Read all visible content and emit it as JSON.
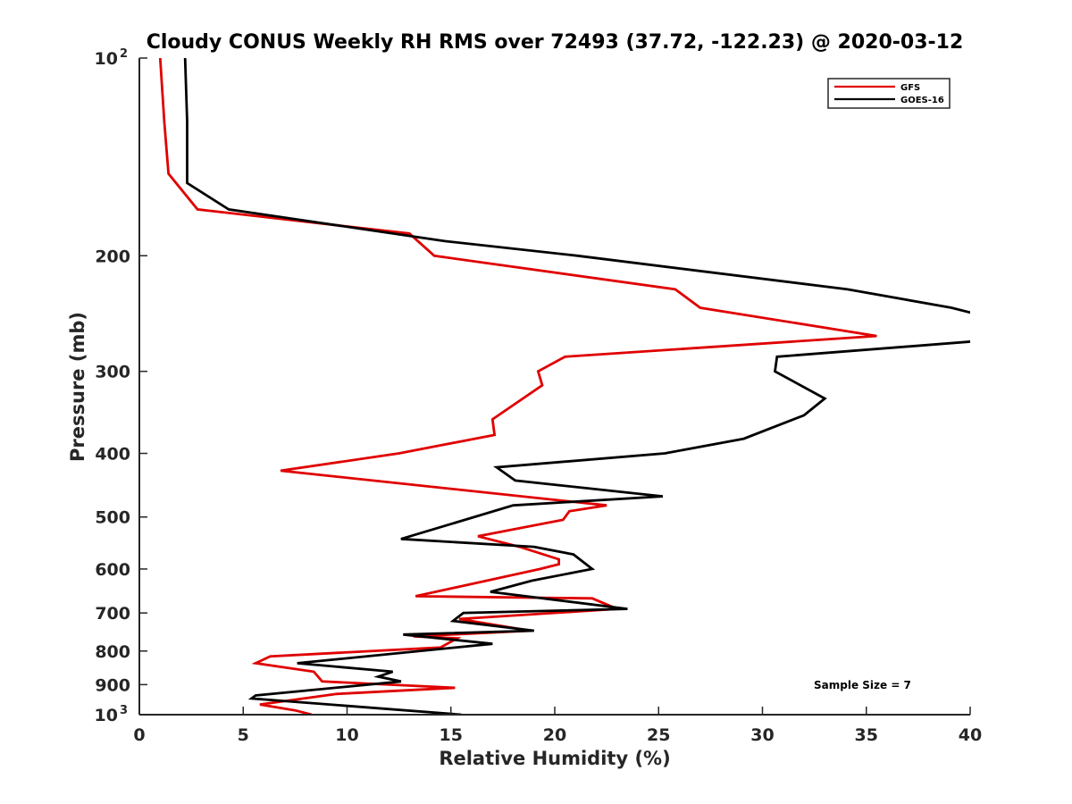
{
  "chart_data": {
    "type": "line",
    "title": "Cloudy CONUS Weekly RH RMS over 72493 (37.72, -122.23) @ 2020-03-12",
    "xlabel": "Relative Humidity (%)",
    "ylabel": "Pressure (mb)",
    "xlim": [
      0,
      40
    ],
    "ylim": [
      100,
      1000
    ],
    "y_scale": "log",
    "y_reversed": true,
    "x_ticks": [
      "0",
      "5",
      "10",
      "15",
      "20",
      "25",
      "30",
      "35",
      "40"
    ],
    "y_ticks": [
      {
        "value": 100,
        "label": "10",
        "sup": "2"
      },
      {
        "value": 200,
        "label": "200",
        "sup": ""
      },
      {
        "value": 300,
        "label": "300",
        "sup": ""
      },
      {
        "value": 400,
        "label": "400",
        "sup": ""
      },
      {
        "value": 500,
        "label": "500",
        "sup": ""
      },
      {
        "value": 600,
        "label": "600",
        "sup": ""
      },
      {
        "value": 700,
        "label": "700",
        "sup": ""
      },
      {
        "value": 800,
        "label": "800",
        "sup": ""
      },
      {
        "value": 900,
        "label": "900",
        "sup": ""
      },
      {
        "value": 1000,
        "label": "10",
        "sup": "3"
      }
    ],
    "grid": false,
    "legend_position": "top-right",
    "annotation": "Sample Size = 7",
    "series": [
      {
        "name": "GFS",
        "color": "#e00000",
        "points": [
          [
            1.0,
            100
          ],
          [
            1.2,
            125
          ],
          [
            1.4,
            150
          ],
          [
            2.8,
            170
          ],
          [
            13.0,
            185
          ],
          [
            14.2,
            200
          ],
          [
            25.8,
            225
          ],
          [
            27.0,
            240
          ],
          [
            35.5,
            265
          ],
          [
            20.5,
            285
          ],
          [
            19.2,
            300
          ],
          [
            19.4,
            315
          ],
          [
            17.0,
            355
          ],
          [
            17.1,
            375
          ],
          [
            12.5,
            400
          ],
          [
            6.8,
            425
          ],
          [
            22.5,
            480
          ],
          [
            20.7,
            490
          ],
          [
            20.4,
            505
          ],
          [
            16.3,
            535
          ],
          [
            18.3,
            555
          ],
          [
            20.2,
            580
          ],
          [
            20.2,
            590
          ],
          [
            19.3,
            600
          ],
          [
            13.3,
            660
          ],
          [
            21.8,
            665
          ],
          [
            23.0,
            690
          ],
          [
            15.4,
            715
          ],
          [
            18.8,
            745
          ],
          [
            13.2,
            760
          ],
          [
            15.3,
            765
          ],
          [
            14.5,
            790
          ],
          [
            6.3,
            815
          ],
          [
            5.6,
            835
          ],
          [
            8.4,
            860
          ],
          [
            8.8,
            890
          ],
          [
            15.2,
            910
          ],
          [
            9.5,
            930
          ],
          [
            5.8,
            965
          ],
          [
            7.5,
            985
          ],
          [
            8.3,
            1000
          ]
        ]
      },
      {
        "name": "GOES-16",
        "color": "#000000",
        "points": [
          [
            2.2,
            100
          ],
          [
            2.3,
            125
          ],
          [
            2.3,
            150
          ],
          [
            2.3,
            155
          ],
          [
            4.3,
            170
          ],
          [
            14.7,
            190
          ],
          [
            21.1,
            200
          ],
          [
            34.1,
            225
          ],
          [
            39.1,
            240
          ],
          [
            40.2,
            245
          ],
          [
            40.2,
            270
          ],
          [
            30.7,
            285
          ],
          [
            30.6,
            300
          ],
          [
            33.0,
            330
          ],
          [
            32.0,
            350
          ],
          [
            29.1,
            380
          ],
          [
            25.3,
            400
          ],
          [
            17.2,
            420
          ],
          [
            18.1,
            440
          ],
          [
            25.2,
            465
          ],
          [
            18.0,
            480
          ],
          [
            12.6,
            540
          ],
          [
            19.0,
            555
          ],
          [
            20.9,
            570
          ],
          [
            21.8,
            600
          ],
          [
            18.9,
            625
          ],
          [
            16.9,
            650
          ],
          [
            23.5,
            690
          ],
          [
            15.6,
            700
          ],
          [
            15.1,
            720
          ],
          [
            19.0,
            745
          ],
          [
            12.7,
            755
          ],
          [
            17.0,
            780
          ],
          [
            7.6,
            835
          ],
          [
            12.2,
            860
          ],
          [
            11.5,
            875
          ],
          [
            12.6,
            890
          ],
          [
            5.6,
            935
          ],
          [
            5.4,
            945
          ],
          [
            15.5,
            1000
          ]
        ]
      }
    ]
  }
}
